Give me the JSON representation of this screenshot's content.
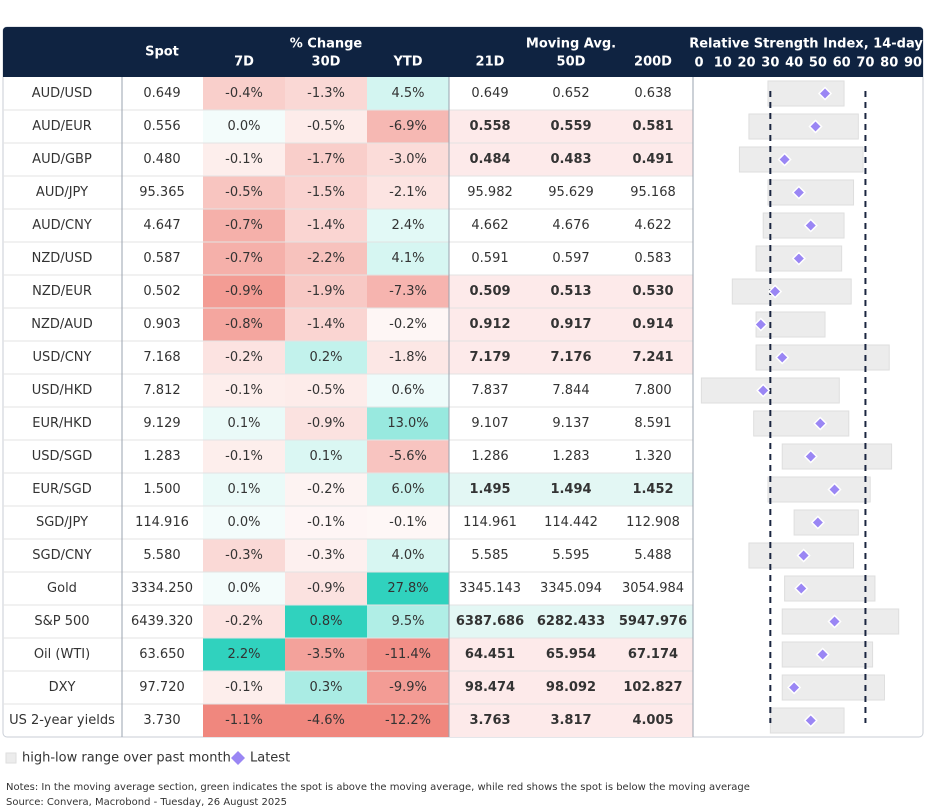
{
  "header": {
    "spot": "Spot",
    "change_group": "% Change",
    "change_cols": [
      "7D",
      "30D",
      "YTD"
    ],
    "ma_group": "Moving Avg.",
    "ma_cols": [
      "21D",
      "50D",
      "200D"
    ],
    "rsi_title": "Relative Strength Index, 14-day"
  },
  "rows": [
    {
      "name": "AUD/USD",
      "spot": "0.649",
      "change": [
        "-0.4%",
        "-1.3%",
        "4.5%"
      ],
      "ma": [
        "0.649",
        "0.652",
        "0.638"
      ]
    },
    {
      "name": "AUD/EUR",
      "spot": "0.556",
      "change": [
        "0.0%",
        "-0.5%",
        "-6.9%"
      ],
      "ma": [
        "0.558",
        "0.559",
        "0.581"
      ]
    },
    {
      "name": "AUD/GBP",
      "spot": "0.480",
      "change": [
        "-0.1%",
        "-1.7%",
        "-3.0%"
      ],
      "ma": [
        "0.484",
        "0.483",
        "0.491"
      ]
    },
    {
      "name": "AUD/JPY",
      "spot": "95.365",
      "change": [
        "-0.5%",
        "-1.5%",
        "-2.1%"
      ],
      "ma": [
        "95.982",
        "95.629",
        "95.168"
      ]
    },
    {
      "name": "AUD/CNY",
      "spot": "4.647",
      "change": [
        "-0.7%",
        "-1.4%",
        "2.4%"
      ],
      "ma": [
        "4.662",
        "4.676",
        "4.622"
      ]
    },
    {
      "name": "NZD/USD",
      "spot": "0.587",
      "change": [
        "-0.7%",
        "-2.2%",
        "4.1%"
      ],
      "ma": [
        "0.591",
        "0.597",
        "0.583"
      ]
    },
    {
      "name": "NZD/EUR",
      "spot": "0.502",
      "change": [
        "-0.9%",
        "-1.9%",
        "-7.3%"
      ],
      "ma": [
        "0.509",
        "0.513",
        "0.530"
      ]
    },
    {
      "name": "NZD/AUD",
      "spot": "0.903",
      "change": [
        "-0.8%",
        "-1.4%",
        "-0.2%"
      ],
      "ma": [
        "0.912",
        "0.917",
        "0.914"
      ]
    },
    {
      "name": "USD/CNY",
      "spot": "7.168",
      "change": [
        "-0.2%",
        "0.2%",
        "-1.8%"
      ],
      "ma": [
        "7.179",
        "7.176",
        "7.241"
      ]
    },
    {
      "name": "USD/HKD",
      "spot": "7.812",
      "change": [
        "-0.1%",
        "-0.5%",
        "0.6%"
      ],
      "ma": [
        "7.837",
        "7.844",
        "7.800"
      ]
    },
    {
      "name": "EUR/HKD",
      "spot": "9.129",
      "change": [
        "0.1%",
        "-0.9%",
        "13.0%"
      ],
      "ma": [
        "9.107",
        "9.137",
        "8.591"
      ]
    },
    {
      "name": "USD/SGD",
      "spot": "1.283",
      "change": [
        "-0.1%",
        "0.1%",
        "-5.6%"
      ],
      "ma": [
        "1.286",
        "1.283",
        "1.320"
      ]
    },
    {
      "name": "EUR/SGD",
      "spot": "1.500",
      "change": [
        "0.1%",
        "-0.2%",
        "6.0%"
      ],
      "ma": [
        "1.495",
        "1.494",
        "1.452"
      ]
    },
    {
      "name": "SGD/JPY",
      "spot": "114.916",
      "change": [
        "0.0%",
        "-0.1%",
        "-0.1%"
      ],
      "ma": [
        "114.961",
        "114.442",
        "112.908"
      ]
    },
    {
      "name": "SGD/CNY",
      "spot": "5.580",
      "change": [
        "-0.3%",
        "-0.3%",
        "4.0%"
      ],
      "ma": [
        "5.585",
        "5.595",
        "5.488"
      ]
    },
    {
      "name": "Gold",
      "spot": "3334.250",
      "change": [
        "0.0%",
        "-0.9%",
        "27.8%"
      ],
      "ma": [
        "3345.143",
        "3345.094",
        "3054.984"
      ]
    },
    {
      "name": "S&P 500",
      "spot": "6439.320",
      "change": [
        "-0.2%",
        "0.8%",
        "9.5%"
      ],
      "ma": [
        "6387.686",
        "6282.433",
        "5947.976"
      ]
    },
    {
      "name": "Oil (WTI)",
      "spot": "63.650",
      "change": [
        "2.2%",
        "-3.5%",
        "-11.4%"
      ],
      "ma": [
        "64.451",
        "65.954",
        "67.174"
      ]
    },
    {
      "name": "DXY",
      "spot": "97.720",
      "change": [
        "-0.1%",
        "0.3%",
        "-9.9%"
      ],
      "ma": [
        "98.474",
        "98.092",
        "102.827"
      ]
    },
    {
      "name": "US 2-year yields",
      "spot": "3.730",
      "change": [
        "-1.1%",
        "-4.6%",
        "-12.2%"
      ],
      "ma": [
        "3.763",
        "3.817",
        "4.005"
      ]
    }
  ],
  "rsi": {
    "type": "range-dot",
    "xlim": [
      0,
      90
    ],
    "xticks": [
      0,
      10,
      20,
      30,
      40,
      50,
      60,
      70,
      80,
      90
    ],
    "reference_lines": [
      30,
      70
    ],
    "range_color": "#ececec",
    "latest_color": "#9a86f4",
    "low": [
      29,
      21,
      17,
      29,
      27,
      24,
      14,
      24,
      24,
      1,
      23,
      35,
      29,
      40,
      21,
      36,
      35,
      35,
      35,
      30
    ],
    "high": [
      61,
      67,
      69,
      65,
      61,
      60,
      64,
      53,
      80,
      59,
      63,
      81,
      72,
      67,
      65,
      74,
      84,
      73,
      78,
      61
    ],
    "latest": [
      53,
      49,
      36,
      42,
      47,
      42,
      32,
      26,
      35,
      27,
      51,
      47,
      57,
      50,
      44,
      43,
      57,
      52,
      40,
      47
    ]
  },
  "legend": {
    "range": "high-low range over past month",
    "latest": "Latest"
  },
  "notes": "Notes: In the moving average section, green indicates the spot is above the moving average, while red shows the spot is below the moving average",
  "source": "Source: Convera, Macrobond - Tuesday, 26 August 2025"
}
